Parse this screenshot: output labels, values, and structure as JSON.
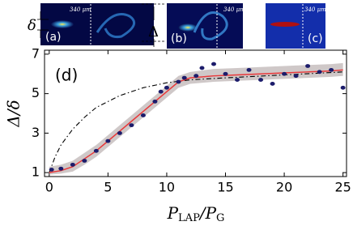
{
  "chart_data": {
    "type": "scatter",
    "insets": [
      {
        "label": "(a)",
        "scale": "340 μm"
      },
      {
        "label": "(b)",
        "scale": "340 μm"
      },
      {
        "label": "(c)",
        "scale": "340 μm"
      }
    ],
    "inset_symbols": [
      "δ",
      "Δ"
    ],
    "panel_label": "(d)",
    "x_label": [
      "P",
      "LAP",
      "/P",
      "G"
    ],
    "y_label": "Δ/δ",
    "xlim": [
      -0.4,
      25.3
    ],
    "ylim": [
      0.8,
      7.2
    ],
    "xticks": [
      0,
      5,
      10,
      15,
      20,
      25
    ],
    "yticks": [
      1,
      3,
      5,
      7
    ],
    "series": [
      {
        "kind": "points",
        "color": "#1c1c6b",
        "x": [
          0.2,
          1,
          2,
          3,
          4,
          5,
          6,
          7,
          8,
          9,
          9.5,
          10,
          11,
          11.5,
          12.5,
          13,
          14,
          15,
          16,
          17,
          18,
          19,
          20,
          21,
          22,
          23,
          24,
          25
        ],
        "values": [
          1.15,
          1.2,
          1.4,
          1.6,
          2.1,
          2.6,
          3.0,
          3.4,
          3.9,
          4.6,
          5.1,
          5.3,
          5.6,
          5.8,
          5.9,
          6.3,
          6.5,
          6.0,
          5.7,
          6.2,
          5.7,
          5.5,
          6.0,
          5.9,
          6.4,
          6.1,
          6.2,
          5.3
        ]
      },
      {
        "kind": "band",
        "color": "#a89a9a",
        "x": [
          0,
          1,
          2,
          3,
          4,
          5,
          6,
          7,
          8,
          9,
          10,
          11,
          12,
          14,
          16,
          18,
          20,
          22,
          24,
          25
        ],
        "values": [
          1.3,
          1.4,
          1.6,
          2.0,
          2.4,
          2.9,
          3.4,
          3.9,
          4.4,
          4.9,
          5.4,
          5.9,
          6.1,
          6.25,
          6.3,
          6.35,
          6.4,
          6.45,
          6.5,
          6.55
        ],
        "lower": [
          0.9,
          0.95,
          1.05,
          1.4,
          1.8,
          2.3,
          2.8,
          3.3,
          3.8,
          4.3,
          4.8,
          5.3,
          5.5,
          5.6,
          5.65,
          5.7,
          5.75,
          5.8,
          5.85,
          5.9
        ]
      },
      {
        "kind": "line",
        "color": "#e8383a",
        "x": [
          0,
          1,
          2,
          3,
          4,
          5,
          6,
          7,
          8,
          9,
          10,
          11,
          12,
          14,
          16,
          18,
          20,
          22,
          24,
          25
        ],
        "values": [
          1.0,
          1.1,
          1.3,
          1.7,
          2.1,
          2.6,
          3.1,
          3.6,
          4.1,
          4.6,
          5.1,
          5.6,
          5.8,
          5.9,
          5.95,
          6.0,
          6.05,
          6.1,
          6.15,
          6.2
        ]
      },
      {
        "kind": "dashdot",
        "color": "#000000",
        "x": [
          0,
          0.5,
          1,
          2,
          3,
          4,
          5,
          6,
          8,
          10,
          12,
          15,
          20,
          25
        ],
        "values": [
          1.0,
          1.8,
          2.4,
          3.2,
          3.8,
          4.3,
          4.6,
          4.9,
          5.3,
          5.55,
          5.7,
          5.8,
          5.95,
          6.1
        ]
      }
    ]
  }
}
